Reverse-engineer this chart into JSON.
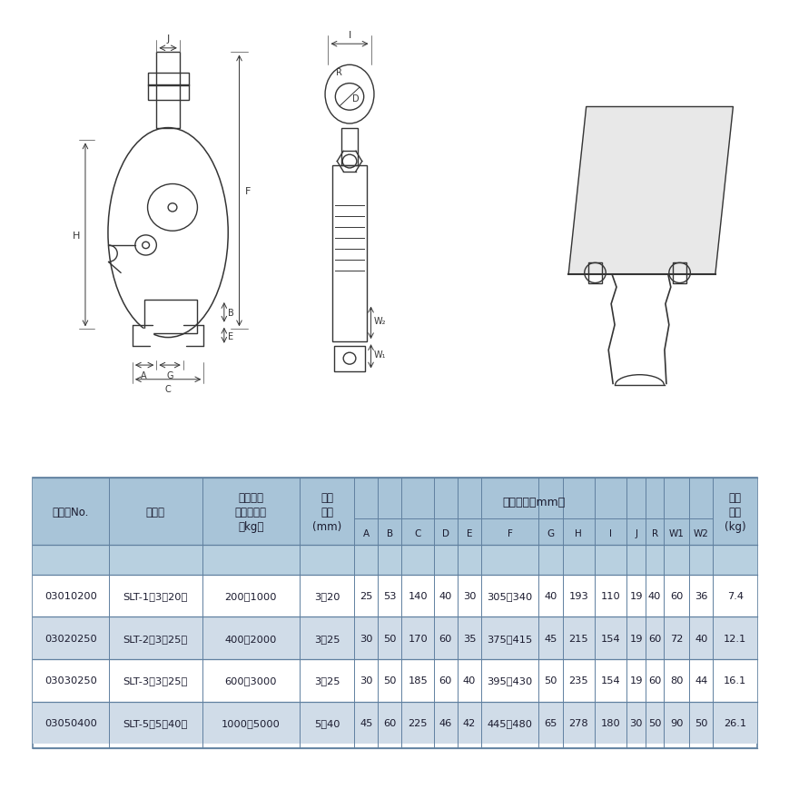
{
  "bg_color": "#ffffff",
  "table_header_bg": "#a8c4d8",
  "table_subheader_bg": "#b8d0e0",
  "table_row_odd_bg": "#ffffff",
  "table_row_even_bg": "#d0dce8",
  "table_border_color": "#6080a0",
  "table_text_color": "#1a1a2e",
  "header_row1": [
    "コードNo.",
    "型　式",
    "使用荷重\n最小〜最大\n（kg）",
    "開口\n寸法\n(mm)",
    "寸　　法（mm）",
    "製品\n質量\n(kg)"
  ],
  "header_row2": [
    "",
    "",
    "",
    "",
    "A",
    "B",
    "C",
    "D",
    "E",
    "F",
    "G",
    "H",
    "I",
    "J",
    "R",
    "W1",
    "W2",
    ""
  ],
  "data_rows": [
    [
      "03010200",
      "SLT-1（3〜20）",
      "200〜1000",
      "3〜20",
      "25",
      "53",
      "140",
      "40",
      "30",
      "305〜340",
      "40",
      "193",
      "110",
      "19",
      "40",
      "60",
      "36",
      "7.4"
    ],
    [
      "03020250",
      "SLT-2（3〜25）",
      "400〜2000",
      "3〜25",
      "30",
      "50",
      "170",
      "60",
      "35",
      "375〜415",
      "45",
      "215",
      "154",
      "19",
      "60",
      "72",
      "40",
      "12.1"
    ],
    [
      "03030250",
      "SLT-3（3〜25）",
      "600〜3000",
      "3〜25",
      "30",
      "50",
      "185",
      "60",
      "40",
      "395〜430",
      "50",
      "235",
      "154",
      "19",
      "60",
      "80",
      "44",
      "16.1"
    ],
    [
      "03050400",
      "SLT-5（5〜40）",
      "1000〜5000",
      "5〜40",
      "45",
      "60",
      "225",
      "46",
      "42",
      "445〜480",
      "65",
      "278",
      "180",
      "30",
      "50",
      "90",
      "50",
      "26.1"
    ]
  ],
  "diagram_image_placeholder": true
}
